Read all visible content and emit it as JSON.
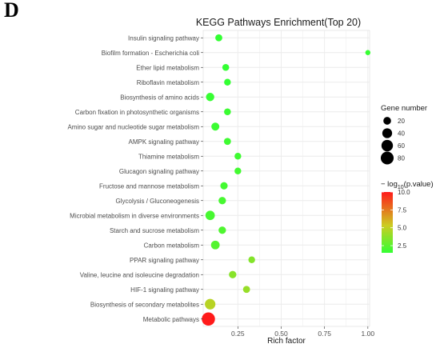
{
  "panel_letter": "D",
  "chart_data": {
    "type": "scatter",
    "title": "KEGG Pathways Enrichment(Top 20)",
    "xlabel": "Rich factor",
    "ylabel": "",
    "xlim": [
      0.05,
      1.01
    ],
    "xticks": [
      0.25,
      0.5,
      0.75,
      1.0
    ],
    "xtick_labels": [
      "0.25",
      "0.50",
      "0.75",
      "1.00"
    ],
    "grid": true,
    "categories": [
      "Insulin signaling pathway",
      "Biofilm formation - Escherichia coli",
      "Ether lipid metabolism",
      "Riboflavin metabolism",
      "Biosynthesis of amino acids",
      "Carbon fixation in photosynthetic organisms",
      "Amino sugar and nucleotide sugar metabolism",
      "AMPK signaling pathway",
      "Thiamine metabolism",
      "Glucagon signaling pathway",
      "Fructose and mannose metabolism",
      "Glycolysis / Gluconeogenesis",
      "Microbial metabolism in diverse environments",
      "Starch and sucrose metabolism",
      "Carbon metabolism",
      "PPAR signaling pathway",
      "Valine, leucine and isoleucine degradation",
      "HIF-1 signaling pathway",
      "Biosynthesis of secondary metabolites",
      "Metabolic pathways"
    ],
    "points": [
      {
        "pathway": "Insulin signaling pathway",
        "rich_factor": 0.14,
        "gene_number": 15,
        "neg_log10_p": 1.5
      },
      {
        "pathway": "Biofilm formation - Escherichia coli",
        "rich_factor": 1.0,
        "gene_number": 5,
        "neg_log10_p": 1.6
      },
      {
        "pathway": "Ether lipid metabolism",
        "rich_factor": 0.18,
        "gene_number": 14,
        "neg_log10_p": 1.5
      },
      {
        "pathway": "Riboflavin metabolism",
        "rich_factor": 0.19,
        "gene_number": 13,
        "neg_log10_p": 1.5
      },
      {
        "pathway": "Biosynthesis of amino acids",
        "rich_factor": 0.09,
        "gene_number": 25,
        "neg_log10_p": 1.6
      },
      {
        "pathway": "Carbon fixation in photosynthetic organisms",
        "rich_factor": 0.19,
        "gene_number": 14,
        "neg_log10_p": 1.7
      },
      {
        "pathway": "Amino sugar and nucleotide sugar metabolism",
        "rich_factor": 0.12,
        "gene_number": 22,
        "neg_log10_p": 1.7
      },
      {
        "pathway": "AMPK signaling pathway",
        "rich_factor": 0.19,
        "gene_number": 15,
        "neg_log10_p": 1.8
      },
      {
        "pathway": "Thiamine metabolism",
        "rich_factor": 0.25,
        "gene_number": 13,
        "neg_log10_p": 1.8
      },
      {
        "pathway": "Glucagon signaling pathway",
        "rich_factor": 0.25,
        "gene_number": 13,
        "neg_log10_p": 1.9
      },
      {
        "pathway": "Fructose and mannose metabolism",
        "rich_factor": 0.17,
        "gene_number": 17,
        "neg_log10_p": 1.9
      },
      {
        "pathway": "Glycolysis / Gluconeogenesis",
        "rich_factor": 0.16,
        "gene_number": 18,
        "neg_log10_p": 2.0
      },
      {
        "pathway": "Microbial metabolism in diverse environments",
        "rich_factor": 0.09,
        "gene_number": 35,
        "neg_log10_p": 2.0
      },
      {
        "pathway": "Starch and sucrose metabolism",
        "rich_factor": 0.16,
        "gene_number": 18,
        "neg_log10_p": 2.2
      },
      {
        "pathway": "Carbon metabolism",
        "rich_factor": 0.12,
        "gene_number": 28,
        "neg_log10_p": 2.3
      },
      {
        "pathway": "PPAR signaling pathway",
        "rich_factor": 0.33,
        "gene_number": 13,
        "neg_log10_p": 3.5
      },
      {
        "pathway": "Valine, leucine and isoleucine degradation",
        "rich_factor": 0.22,
        "gene_number": 18,
        "neg_log10_p": 3.6
      },
      {
        "pathway": "HIF-1 signaling pathway",
        "rich_factor": 0.3,
        "gene_number": 15,
        "neg_log10_p": 4.0
      },
      {
        "pathway": "Biosynthesis of secondary metabolites",
        "rich_factor": 0.09,
        "gene_number": 48,
        "neg_log10_p": 4.8
      },
      {
        "pathway": "Metabolic pathways",
        "rich_factor": 0.08,
        "gene_number": 85,
        "neg_log10_p": 10.0
      }
    ],
    "size_legend": {
      "title": "Gene number",
      "values": [
        20,
        40,
        60,
        80
      ],
      "labels": [
        "20",
        "40",
        "60",
        "80"
      ]
    },
    "color_legend": {
      "title_prefix": "− log",
      "title_subscript": "10",
      "title_suffix": "(p.value)",
      "range": [
        1.5,
        10.0
      ],
      "ticks": [
        2.5,
        5.0,
        7.5,
        10.0
      ],
      "tick_labels": [
        "2.5",
        "5.0",
        "7.5",
        "10.0"
      ],
      "low_color": "#33ff33",
      "mid_color": "#cccc22",
      "high_color": "#ff1a1a"
    },
    "panel_background": "#ffffff",
    "grid_color": "#ebebeb"
  }
}
